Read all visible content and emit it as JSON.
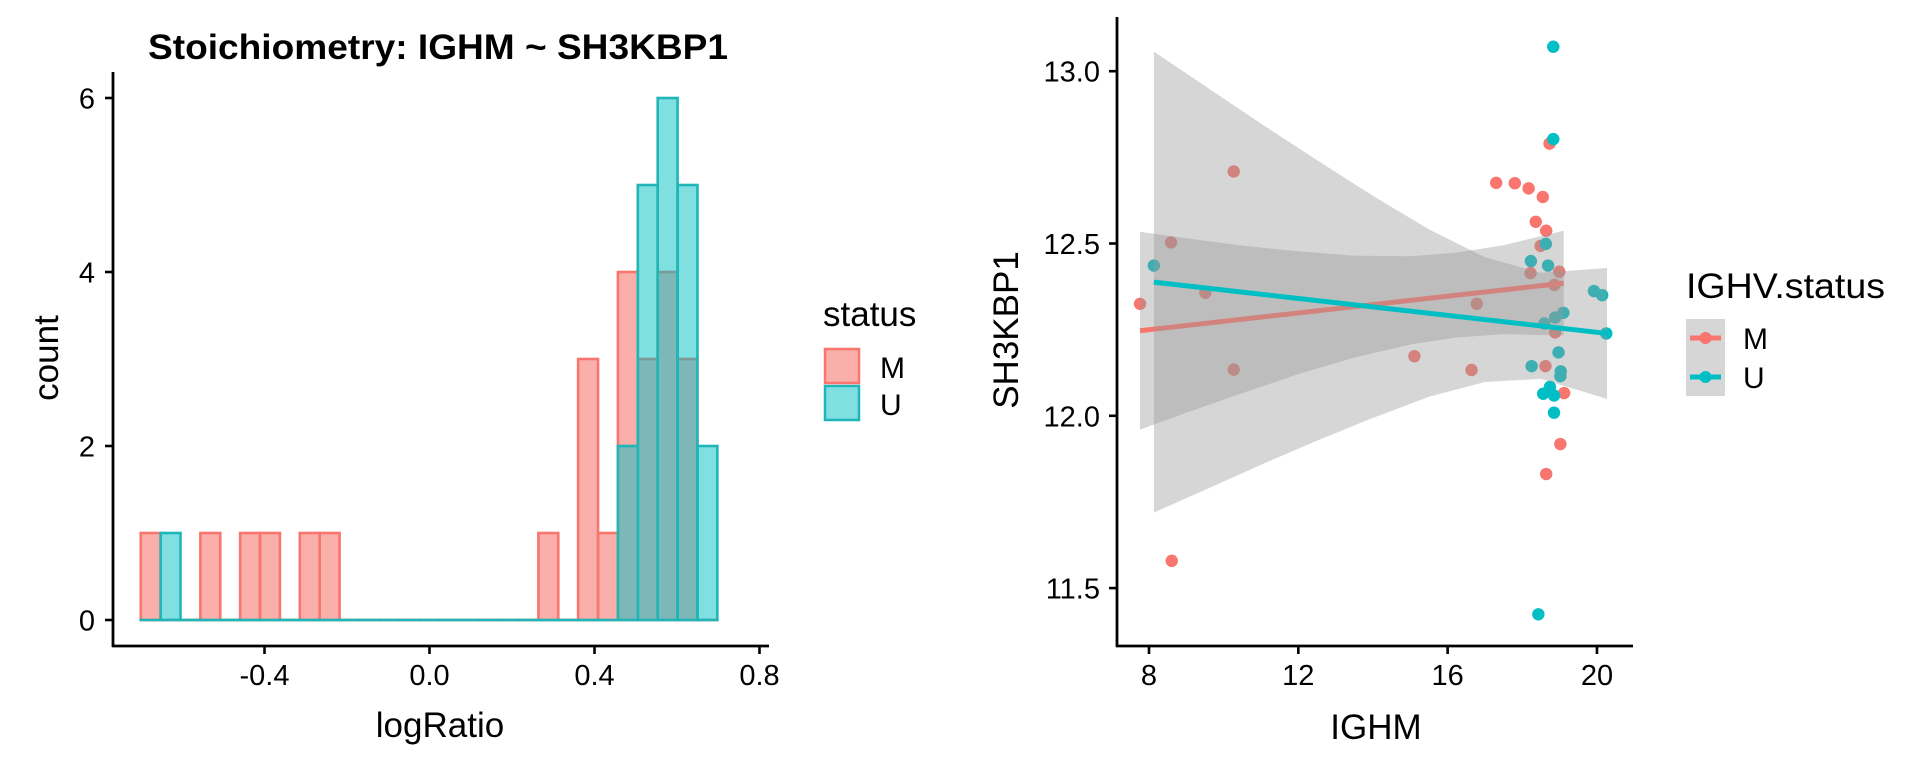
{
  "colors": {
    "M": "#F8766D",
    "U": "#00BFC4",
    "ribbon": "#999999",
    "axis": "#000000"
  },
  "chart_data": [
    {
      "type": "bar",
      "subtype": "histogram",
      "title": "Stoichiometry: IGHM ~ SH3KBP1",
      "xlabel": "logRatio",
      "ylabel": "count",
      "xlim": [
        -0.74,
        0.81
      ],
      "ylim": [
        -0.3,
        6.3
      ],
      "xticks": [
        -0.4,
        0.0,
        0.4,
        0.8
      ],
      "xtick_labels": [
        "-0.4",
        "0.0",
        "0.4",
        "0.8"
      ],
      "yticks": [
        0,
        2,
        4,
        6
      ],
      "ytick_labels": [
        "0",
        "2",
        "4",
        "6"
      ],
      "grid": false,
      "bins": {
        "start": -0.7,
        "width": 0.0482,
        "count": 30
      },
      "legend": {
        "title": "status",
        "position": "right",
        "entries": [
          "M",
          "U"
        ]
      },
      "series": [
        {
          "name": "M",
          "counts": [
            1,
            0,
            0,
            1,
            0,
            1,
            1,
            0,
            1,
            1,
            0,
            0,
            0,
            0,
            0,
            0,
            0,
            0,
            0,
            0,
            1,
            0,
            3,
            1,
            4,
            3,
            4,
            3,
            0,
            0
          ]
        },
        {
          "name": "U",
          "counts": [
            0,
            1,
            0,
            0,
            0,
            0,
            0,
            0,
            0,
            0,
            0,
            0,
            0,
            0,
            0,
            0,
            0,
            0,
            0,
            0,
            0,
            0,
            0,
            0,
            2,
            5,
            6,
            5,
            2,
            0
          ]
        }
      ]
    },
    {
      "type": "scatter",
      "title": "",
      "xlabel": "IGHM",
      "ylabel": "SH3KBP1",
      "xlim": [
        7.1,
        20.95
      ],
      "ylim": [
        11.33,
        13.15
      ],
      "xticks": [
        8,
        12,
        16,
        20
      ],
      "xtick_labels": [
        "8",
        "12",
        "16",
        "20"
      ],
      "yticks": [
        11.5,
        12.0,
        12.5,
        13.0
      ],
      "ytick_labels": [
        "11.5",
        "12.0",
        "12.5",
        "13.0"
      ],
      "grid": false,
      "legend": {
        "title": "IGHV.status",
        "position": "right",
        "entries": [
          "M",
          "U"
        ]
      },
      "series": [
        {
          "name": "M",
          "points": [
            [
              7.76,
              12.325
            ],
            [
              8.59,
              12.503
            ],
            [
              9.51,
              12.357
            ],
            [
              10.27,
              12.709
            ],
            [
              10.27,
              12.134
            ],
            [
              8.61,
              11.579
            ],
            [
              15.11,
              12.173
            ],
            [
              16.64,
              12.133
            ],
            [
              16.78,
              12.325
            ],
            [
              18.73,
              12.79
            ],
            [
              17.3,
              12.676
            ],
            [
              17.8,
              12.675
            ],
            [
              18.17,
              12.66
            ],
            [
              18.55,
              12.635
            ],
            [
              18.36,
              12.563
            ],
            [
              18.64,
              12.537
            ],
            [
              18.49,
              12.493
            ],
            [
              18.99,
              12.418
            ],
            [
              18.22,
              12.414
            ],
            [
              18.86,
              12.38
            ],
            [
              18.88,
              12.242
            ],
            [
              18.62,
              12.144
            ],
            [
              19.12,
              12.066
            ],
            [
              19.02,
              11.918
            ],
            [
              18.64,
              11.831
            ]
          ],
          "fit": [
            [
              7.76,
              12.247
            ],
            [
              19.11,
              12.385
            ]
          ],
          "ci_band": [
            [
              7.76,
              11.96,
              12.534
            ],
            [
              9.0,
              12.009,
              12.515
            ],
            [
              10.5,
              12.066,
              12.494
            ],
            [
              12.0,
              12.121,
              12.477
            ],
            [
              13.5,
              12.169,
              12.465
            ],
            [
              15.0,
              12.207,
              12.463
            ],
            [
              16.2,
              12.227,
              12.473
            ],
            [
              17.5,
              12.237,
              12.495
            ],
            [
              19.11,
              12.233,
              12.537
            ]
          ]
        },
        {
          "name": "U",
          "points": [
            [
              8.13,
              12.436
            ],
            [
              18.83,
              13.071
            ],
            [
              18.83,
              12.803
            ],
            [
              18.63,
              12.499
            ],
            [
              18.23,
              12.449
            ],
            [
              18.69,
              12.436
            ],
            [
              19.92,
              12.362
            ],
            [
              20.14,
              12.35
            ],
            [
              19.1,
              12.299
            ],
            [
              18.88,
              12.285
            ],
            [
              18.59,
              12.268
            ],
            [
              20.25,
              12.239
            ],
            [
              18.97,
              12.184
            ],
            [
              18.25,
              12.144
            ],
            [
              19.03,
              12.129
            ],
            [
              19.02,
              12.115
            ],
            [
              18.74,
              12.084
            ],
            [
              18.56,
              12.064
            ],
            [
              18.85,
              12.059
            ],
            [
              18.85,
              12.009
            ],
            [
              18.43,
              11.424
            ]
          ],
          "fit": [
            [
              8.13,
              12.388
            ],
            [
              20.27,
              12.239
            ]
          ],
          "ci_band": [
            [
              8.13,
              11.719,
              13.057
            ],
            [
              9.5,
              11.785,
              12.957
            ],
            [
              11.0,
              11.858,
              12.848
            ],
            [
              12.5,
              11.928,
              12.742
            ],
            [
              14.0,
              11.994,
              12.638
            ],
            [
              15.5,
              12.055,
              12.541
            ],
            [
              17.0,
              12.098,
              12.46
            ],
            [
              18.5,
              12.107,
              12.415
            ],
            [
              20.27,
              12.049,
              12.429
            ]
          ]
        }
      ]
    }
  ]
}
